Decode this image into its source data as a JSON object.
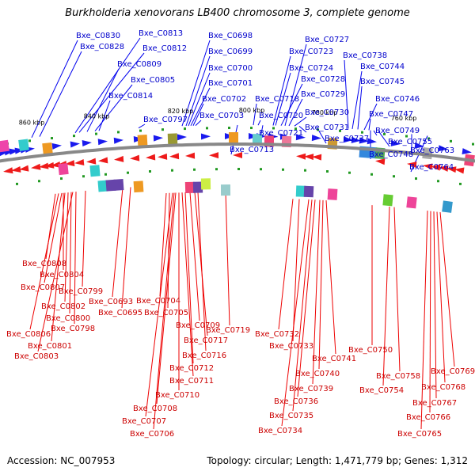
{
  "title": "Burkholderia xenovorans LB400 chromosome 3, complete genome",
  "footer": {
    "accession": "Accession: NC_007953",
    "topology": "Topology: circular; Length: 1,471,779 bp; Genes: 1,312"
  },
  "colors": {
    "forward": "#1a1aee",
    "reverse": "#ee1a1a",
    "backbone": "#888888",
    "rna": "#229922"
  },
  "ticks": [
    "860 kbp",
    "840 kbp",
    "820 kbp",
    "800 kbp",
    "780 kbp",
    "760 kbp"
  ],
  "top_labels": [
    "Bxe_C0830",
    "Bxe_C0828",
    "Bxe_C0813",
    "Bxe_C0812",
    "Bxe_C0809",
    "Bxe_C0805",
    "Bxe_C0814",
    "Bxe_C0797",
    "Bxe_C0698",
    "Bxe_C0699",
    "Bxe_C0700",
    "Bxe_C0701",
    "Bxe_C0702",
    "Bxe_C0703",
    "Bxe_C0713",
    "Bxe_C0727",
    "Bxe_C0723",
    "Bxe_C0724",
    "Bxe_C0728",
    "Bxe_C0718",
    "Bxe_C0729",
    "Bxe_C0720",
    "Bxe_C0730",
    "Bxe_C0721",
    "Bxe_C0731",
    "Bxe_C0737",
    "Bxe_C0738",
    "Bxe_C0744",
    "Bxe_C0745",
    "Bxe_C0746",
    "Bxe_C0747",
    "Bxe_C0749",
    "Bxe_C0755",
    "Bxe_C0748",
    "Bxe_C0763",
    "Bxe_C0764"
  ],
  "bottom_labels": [
    "Bxe_C0808",
    "Bxe_C0804",
    "Bxe_C0807",
    "Bxe_C0799",
    "Bxe_C0802",
    "Bxe_C0800",
    "Bxe_C0798",
    "Bxe_C0806",
    "Bxe_C0801",
    "Bxe_C0803",
    "Bxe_C0693",
    "Bxe_C0695",
    "Bxe_C0704",
    "Bxe_C0705",
    "Bxe_C0709",
    "Bxe_C0717",
    "Bxe_C0716",
    "Bxe_C0712",
    "Bxe_C0711",
    "Bxe_C0710",
    "Bxe_C0708",
    "Bxe_C0707",
    "Bxe_C0706",
    "Bxe_C0719",
    "Bxe_C0732",
    "Bxe_C0733",
    "Bxe_C0741",
    "Bxe_C0740",
    "Bxe_C0739",
    "Bxe_C0736",
    "Bxe_C0735",
    "Bxe_C0734",
    "Bxe_C0750",
    "Bxe_C0758",
    "Bxe_C0754",
    "Bxe_C0769",
    "Bxe_C0768",
    "Bxe_C0767",
    "Bxe_C0766",
    "Bxe_C0765"
  ]
}
